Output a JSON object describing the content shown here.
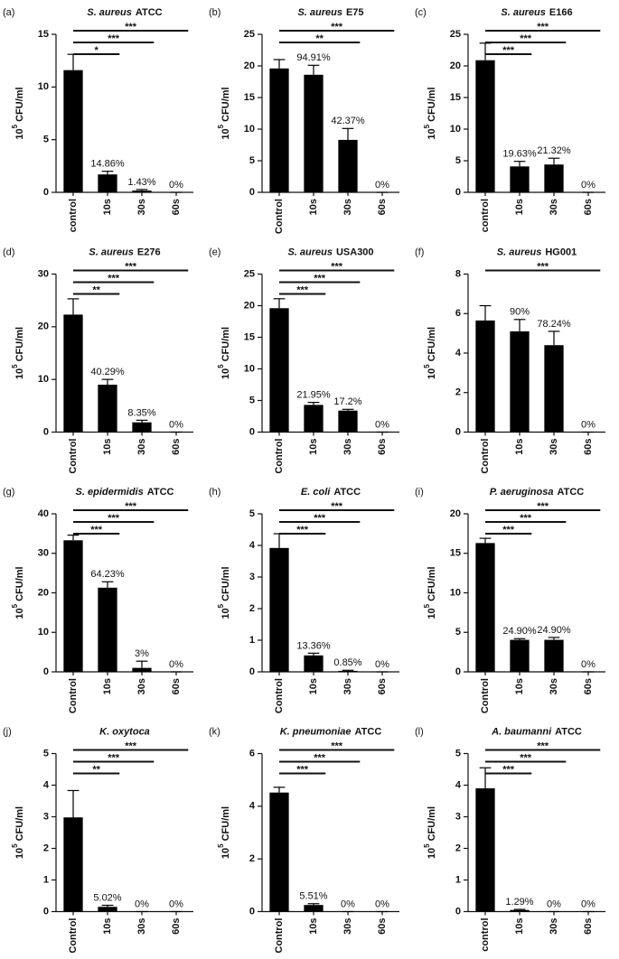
{
  "chart_data": [
    {
      "type": "bar",
      "panel_label": "(a)",
      "title": {
        "species": "S. aureus",
        "strain": "ATCC"
      },
      "ylabel": {
        "base": "10",
        "exponent": "5",
        "unit": "CFU/ml"
      },
      "categories": [
        "control",
        "10s",
        "30s",
        "60s"
      ],
      "values": [
        11.6,
        1.7,
        0.17,
        0
      ],
      "errors": [
        1.5,
        0.3,
        0.1,
        0
      ],
      "percent_labels": [
        null,
        "14.86%",
        "1.43%",
        "0%"
      ],
      "significance": [
        null,
        "*",
        "***",
        "***"
      ],
      "color": "#000000",
      "ylim": [
        0,
        15
      ],
      "yticks": [
        0,
        5,
        10,
        15
      ]
    },
    {
      "type": "bar",
      "panel_label": "(b)",
      "title": {
        "species": "S. aureus",
        "strain": "E75"
      },
      "ylabel": {
        "base": "10",
        "exponent": "5",
        "unit": "CFU/ml"
      },
      "categories": [
        "Control",
        "10s",
        "30s",
        "60s"
      ],
      "values": [
        19.6,
        18.6,
        8.3,
        0
      ],
      "errors": [
        1.4,
        1.5,
        1.8,
        0
      ],
      "percent_labels": [
        null,
        "94.91%",
        "42.37%",
        "0%"
      ],
      "significance": [
        null,
        null,
        "**",
        "***"
      ],
      "color": "#000000",
      "ylim": [
        0,
        25
      ],
      "yticks": [
        0,
        5,
        10,
        15,
        20,
        25
      ]
    },
    {
      "type": "bar",
      "panel_label": "(c)",
      "title": {
        "species": "S. aureus",
        "strain": "E166"
      },
      "ylabel": {
        "base": "10",
        "exponent": "5",
        "unit": "CFU/ml"
      },
      "categories": [
        "control",
        "10s",
        "30s",
        "60s"
      ],
      "values": [
        20.9,
        4.1,
        4.4,
        0
      ],
      "errors": [
        2.7,
        0.8,
        1.0,
        0
      ],
      "percent_labels": [
        null,
        "19.63%",
        "21.32%",
        "0%"
      ],
      "significance": [
        null,
        "***",
        "***",
        "***"
      ],
      "color": "#000000",
      "ylim": [
        0,
        25
      ],
      "yticks": [
        0,
        5,
        10,
        15,
        20,
        25
      ]
    },
    {
      "type": "bar",
      "panel_label": "(d)",
      "title": {
        "species": "S. aureus",
        "strain": "E276"
      },
      "ylabel": {
        "base": "10",
        "exponent": "5",
        "unit": "CFU/ml"
      },
      "categories": [
        "Control",
        "10s",
        "30s",
        "60s"
      ],
      "values": [
        22.3,
        9.0,
        1.85,
        0
      ],
      "errors": [
        3.0,
        1.0,
        0.4,
        0
      ],
      "percent_labels": [
        null,
        "40.29%",
        "8.35%",
        "0%"
      ],
      "significance": [
        null,
        "**",
        "***",
        "***"
      ],
      "color": "#000000",
      "ylim": [
        0,
        30
      ],
      "yticks": [
        0,
        10,
        20,
        30
      ]
    },
    {
      "type": "bar",
      "panel_label": "(e)",
      "title": {
        "species": "S. aureus",
        "strain": "USA300"
      },
      "ylabel": {
        "base": "10",
        "exponent": "5",
        "unit": "CFU/ml"
      },
      "categories": [
        "Control",
        "10s",
        "30s",
        "60s"
      ],
      "values": [
        19.6,
        4.3,
        3.4,
        0
      ],
      "errors": [
        1.5,
        0.4,
        0.2,
        0
      ],
      "percent_labels": [
        null,
        "21.95%",
        "17.2%",
        "0%"
      ],
      "significance": [
        null,
        "***",
        "***",
        "***"
      ],
      "color": "#000000",
      "ylim": [
        0,
        25
      ],
      "yticks": [
        0,
        5,
        10,
        15,
        20,
        25
      ]
    },
    {
      "type": "bar",
      "panel_label": "(f)",
      "title": {
        "species": "S. aureus",
        "strain": "HG001"
      },
      "ylabel": {
        "base": "10",
        "exponent": "5",
        "unit": "CFU/ml"
      },
      "categories": [
        "Control",
        "10s",
        "30s",
        "60s"
      ],
      "values": [
        5.65,
        5.1,
        4.4,
        0
      ],
      "errors": [
        0.75,
        0.6,
        0.7,
        0
      ],
      "percent_labels": [
        null,
        "90%",
        "78.24%",
        "0%"
      ],
      "significance": [
        null,
        null,
        null,
        "***"
      ],
      "color": "#000000",
      "ylim": [
        0,
        8
      ],
      "yticks": [
        0,
        2,
        4,
        6,
        8
      ]
    },
    {
      "type": "bar",
      "panel_label": "(g)",
      "title": {
        "species": "S. epidermidis",
        "strain": "ATCC"
      },
      "ylabel": {
        "base": "10",
        "exponent": "5",
        "unit": "CFU/ml"
      },
      "categories": [
        "Control",
        "10s",
        "30s",
        "60s"
      ],
      "values": [
        33.3,
        21.3,
        1.0,
        0
      ],
      "errors": [
        1.3,
        1.5,
        1.7,
        0
      ],
      "percent_labels": [
        null,
        "64.23%",
        "3%",
        "0%"
      ],
      "significance": [
        null,
        "***",
        "***",
        "***"
      ],
      "color": "#000000",
      "ylim": [
        0,
        40
      ],
      "yticks": [
        0,
        10,
        20,
        30,
        40
      ]
    },
    {
      "type": "bar",
      "panel_label": "(h)",
      "title": {
        "species": "E. coli",
        "strain": "ATCC"
      },
      "ylabel": {
        "base": "10",
        "exponent": "5",
        "unit": "CFU/ml"
      },
      "categories": [
        "Control",
        "10s",
        "30s",
        "60s"
      ],
      "values": [
        3.92,
        0.52,
        0.03,
        0
      ],
      "errors": [
        0.45,
        0.07,
        0.02,
        0
      ],
      "percent_labels": [
        null,
        "13.36%",
        "0.85%",
        "0%"
      ],
      "significance": [
        null,
        "***",
        "***",
        "***"
      ],
      "color": "#000000",
      "ylim": [
        0,
        5
      ],
      "yticks": [
        0,
        1,
        2,
        3,
        4,
        5
      ]
    },
    {
      "type": "bar",
      "panel_label": "(i)",
      "title": {
        "species": "P. aeruginosa",
        "strain": "ATCC"
      },
      "ylabel": {
        "base": "10",
        "exponent": "5",
        "unit": "CFU/ml"
      },
      "categories": [
        "Control",
        "10s",
        "30s",
        "60s"
      ],
      "values": [
        16.3,
        4.05,
        4.05,
        0
      ],
      "errors": [
        0.6,
        0.15,
        0.3,
        0
      ],
      "percent_labels": [
        null,
        "24.90%",
        "24.90%",
        "0%"
      ],
      "significance": [
        null,
        "***",
        "***",
        "***"
      ],
      "color": "#000000",
      "ylim": [
        0,
        20
      ],
      "yticks": [
        0,
        5,
        10,
        15,
        20
      ]
    },
    {
      "type": "bar",
      "panel_label": "(j)",
      "title": {
        "species": "K. oxytoca"
      },
      "ylabel": {
        "base": "10",
        "exponent": "5",
        "unit": "CFU/ml"
      },
      "categories": [
        "Control",
        "10s",
        "30s",
        "60s"
      ],
      "values": [
        2.98,
        0.15,
        0,
        0
      ],
      "errors": [
        0.85,
        0.05,
        0,
        0
      ],
      "percent_labels": [
        null,
        "5.02%",
        "0%",
        "0%"
      ],
      "significance": [
        null,
        "**",
        "***",
        "***"
      ],
      "color": "#000000",
      "ylim": [
        0,
        5
      ],
      "yticks": [
        0,
        1,
        2,
        3,
        4,
        5
      ]
    },
    {
      "type": "bar",
      "panel_label": "(k)",
      "title": {
        "species": "K. pneumoniae",
        "strain": "ATCC"
      },
      "ylabel": {
        "base": "10",
        "exponent": "5",
        "unit": "CFU/ml"
      },
      "categories": [
        "Control",
        "10s",
        "30s",
        "60s"
      ],
      "values": [
        4.52,
        0.25,
        0,
        0
      ],
      "errors": [
        0.2,
        0.05,
        0,
        0
      ],
      "percent_labels": [
        null,
        "5.51%",
        "0%",
        "0%"
      ],
      "significance": [
        null,
        "***",
        "***",
        "***"
      ],
      "color": "#000000",
      "ylim": [
        0,
        6
      ],
      "yticks": [
        0,
        2,
        4,
        6
      ]
    },
    {
      "type": "bar",
      "panel_label": "(l)",
      "title": {
        "species": "A. baumanni",
        "strain": "ATCC"
      },
      "ylabel": {
        "base": "10",
        "exponent": "5",
        "unit": "CFU/ml"
      },
      "categories": [
        "control",
        "10s",
        "30s",
        "60s"
      ],
      "values": [
        3.9,
        0.05,
        0,
        0
      ],
      "errors": [
        0.65,
        0.02,
        0,
        0
      ],
      "percent_labels": [
        null,
        "1.29%",
        "0%",
        "0%"
      ],
      "significance": [
        null,
        "***",
        "***",
        "***"
      ],
      "color": "#000000",
      "ylim": [
        0,
        5
      ],
      "yticks": [
        0,
        1,
        2,
        3,
        4,
        5
      ]
    }
  ]
}
